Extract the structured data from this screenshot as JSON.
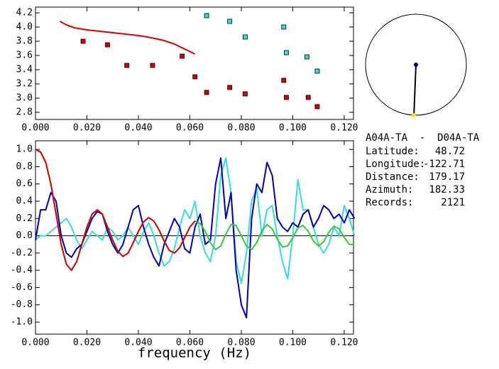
{
  "chart_data": [
    {
      "type": "scatter",
      "xlim": [
        0,
        0.1236
      ],
      "ylim": [
        2.7,
        4.28
      ],
      "xticks": [
        {
          "value": 0,
          "label": "0.000"
        },
        {
          "value": 0.02,
          "label": "0.020"
        },
        {
          "value": 0.04,
          "label": "0.040"
        },
        {
          "value": 0.06,
          "label": "0.060"
        },
        {
          "value": 0.08,
          "label": "0.080"
        },
        {
          "value": 0.1,
          "label": "0.100"
        },
        {
          "value": 0.12,
          "label": "0.120"
        }
      ],
      "yticks": [
        2.8,
        {
          "value": 3.0,
          "label": "3.0"
        },
        3.2,
        3.4,
        3.6,
        3.8,
        {
          "value": 4.0,
          "label": "4.0"
        },
        4.2
      ],
      "series": [
        {
          "kind": "square",
          "color": "#dd0000",
          "x": [
            0.0185,
            0.028,
            0.0355,
            0.0455,
            0.057,
            0.062,
            0.0665,
            0.0755,
            0.0815,
            0.0965,
            0.0975,
            0.106,
            0.1095
          ],
          "values": [
            3.8,
            3.75,
            3.46,
            3.46,
            3.59,
            3.3,
            3.08,
            3.15,
            3.06,
            3.25,
            3.01,
            3.01,
            2.88
          ]
        },
        {
          "kind": "square",
          "color": "#33dddd",
          "x": [
            0.0665,
            0.0755,
            0.0815,
            0.0965,
            0.0975,
            0.1055,
            0.1095
          ],
          "values": [
            4.16,
            4.08,
            3.86,
            4.0,
            3.64,
            3.58,
            3.38
          ]
        },
        {
          "kind": "line",
          "color": "#dd0000",
          "x": [
            0.0095,
            0.012,
            0.015,
            0.02,
            0.025,
            0.03,
            0.035,
            0.04,
            0.045,
            0.05,
            0.054,
            0.058,
            0.062
          ],
          "values": [
            4.08,
            4.03,
            3.99,
            3.96,
            3.94,
            3.92,
            3.9,
            3.88,
            3.85,
            3.81,
            3.76,
            3.69,
            3.62
          ]
        }
      ]
    },
    {
      "type": "line",
      "xlabel": "frequency (Hz)",
      "xlim": [
        0,
        0.1236
      ],
      "ylim": [
        -1.14,
        1.1
      ],
      "xticks": [
        {
          "value": 0,
          "label": "0.000"
        },
        {
          "value": 0.02,
          "label": "0.020"
        },
        {
          "value": 0.04,
          "label": "0.040"
        },
        {
          "value": 0.06,
          "label": "0.060"
        },
        {
          "value": 0.08,
          "label": "0.080"
        },
        {
          "value": 0.1,
          "label": "0.100"
        },
        {
          "value": 0.12,
          "label": "0.120"
        }
      ],
      "yticks": [
        {
          "value": -1.0,
          "label": "-1.0"
        },
        -0.8,
        -0.6,
        -0.4,
        -0.2,
        {
          "value": 0.0,
          "label": "0.0"
        },
        0.2,
        0.4,
        0.6,
        0.8,
        {
          "value": 1.0,
          "label": "1.0"
        }
      ],
      "x": [
        0,
        0.002,
        0.004,
        0.006,
        0.008,
        0.01,
        0.012,
        0.014,
        0.016,
        0.018,
        0.02,
        0.022,
        0.024,
        0.026,
        0.028,
        0.03,
        0.032,
        0.034,
        0.036,
        0.038,
        0.04,
        0.042,
        0.044,
        0.046,
        0.048,
        0.05,
        0.052,
        0.054,
        0.056,
        0.058,
        0.06,
        0.062,
        0.064,
        0.066,
        0.068,
        0.07,
        0.072,
        0.074,
        0.076,
        0.078,
        0.08,
        0.082,
        0.084,
        0.086,
        0.088,
        0.09,
        0.092,
        0.094,
        0.096,
        0.098,
        0.1,
        0.102,
        0.104,
        0.106,
        0.108,
        0.11,
        0.112,
        0.114,
        0.116,
        0.118,
        0.12,
        0.122,
        0.124
      ],
      "series": [
        {
          "color": "#33dddd",
          "values": [
            -0.05,
            0.0,
            0.0,
            0.05,
            0.1,
            0.15,
            0.2,
            0.1,
            -0.05,
            -0.15,
            -0.05,
            0.05,
            0.0,
            -0.05,
            0.1,
            0.05,
            -0.05,
            0.0,
            0.1,
            0.0,
            -0.1,
            0.05,
            0.15,
            0.0,
            -0.2,
            -0.35,
            -0.3,
            -0.15,
            0.1,
            0.3,
            0.2,
            0.4,
            0.0,
            -0.2,
            -0.3,
            0.0,
            0.7,
            0.9,
            0.5,
            -0.3,
            -0.55,
            -0.2,
            0.4,
            0.55,
            0.0,
            0.3,
            0.35,
            0.0,
            -0.3,
            -0.5,
            0.0,
            0.65,
            0.3,
            0.3,
            0.1,
            -0.1,
            -0.2,
            -0.1,
            0.1,
            0.0,
            0.35,
            0.2,
            0.0
          ]
        },
        {
          "color": "#0000bb",
          "values": [
            -0.05,
            0.3,
            0.3,
            0.5,
            0.4,
            0.0,
            -0.2,
            -0.25,
            -0.15,
            -0.1,
            0.05,
            0.2,
            0.28,
            0.25,
            0.05,
            -0.1,
            -0.2,
            -0.1,
            0.1,
            0.3,
            0.35,
            0.1,
            -0.1,
            -0.25,
            -0.35,
            -0.1,
            0.05,
            0.2,
            0.1,
            -0.15,
            -0.2,
            0.1,
            0.25,
            -0.1,
            -0.05,
            0.6,
            0.9,
            0.2,
            0.5,
            -0.4,
            -0.8,
            -0.95,
            0.2,
            0.6,
            0.5,
            0.85,
            0.7,
            0.2,
            0.1,
            0.05,
            0.15,
            0.1,
            0.25,
            0.3,
            0.1,
            0.2,
            0.35,
            0.3,
            0.2,
            0.25,
            0.15,
            0.3,
            0.2
          ]
        },
        {
          "color": "#33cc33",
          "values": [
            1.0,
            0.97,
            0.85,
            0.6,
            0.25,
            -0.1,
            -0.33,
            -0.4,
            -0.3,
            -0.1,
            0.1,
            0.25,
            0.3,
            0.25,
            0.1,
            -0.05,
            -0.18,
            -0.24,
            -0.2,
            -0.08,
            0.05,
            0.16,
            0.21,
            0.17,
            0.07,
            -0.06,
            -0.17,
            -0.2,
            -0.14,
            -0.02,
            0.1,
            0.17,
            0.14,
            0.05,
            -0.08,
            -0.16,
            -0.12,
            0.02,
            0.13,
            0.12,
            0.0,
            -0.12,
            -0.16,
            -0.08,
            0.06,
            0.13,
            0.08,
            -0.04,
            -0.13,
            -0.12,
            -0.02,
            0.09,
            0.12,
            0.05,
            -0.06,
            -0.12,
            -0.07,
            0.04,
            0.11,
            0.08,
            -0.02,
            -0.1,
            -0.1
          ]
        },
        {
          "color": "#dd0000",
          "values": [
            1.0,
            0.97,
            0.85,
            0.6,
            0.25,
            -0.1,
            -0.33,
            -0.4,
            -0.3,
            -0.1,
            0.1,
            0.25,
            0.3,
            0.25,
            0.1,
            -0.05,
            -0.18,
            -0.24,
            -0.2,
            -0.08,
            0.05,
            0.16,
            0.21,
            0.17,
            0.07,
            -0.06,
            -0.17,
            -0.2,
            -0.14,
            -0.02,
            0.1,
            0.17,
            null,
            null,
            null,
            null,
            null,
            null,
            null,
            null,
            null,
            null,
            null,
            null,
            null,
            null,
            null,
            null,
            null,
            null,
            null,
            null,
            null,
            null,
            null,
            null,
            null,
            null,
            null,
            null,
            null,
            null,
            null
          ]
        }
      ]
    }
  ],
  "station": {
    "title": "A04A-TA  -  D04A-TA",
    "fields": [
      {
        "label": "Latitude:",
        "value": 48.72
      },
      {
        "label": "Longitude:",
        "value": -122.71
      },
      {
        "label": "Distance:",
        "value": 179.17
      },
      {
        "label": "Azimuth:",
        "value": 182.33
      },
      {
        "label": "Records:",
        "value": 2121
      }
    ]
  }
}
